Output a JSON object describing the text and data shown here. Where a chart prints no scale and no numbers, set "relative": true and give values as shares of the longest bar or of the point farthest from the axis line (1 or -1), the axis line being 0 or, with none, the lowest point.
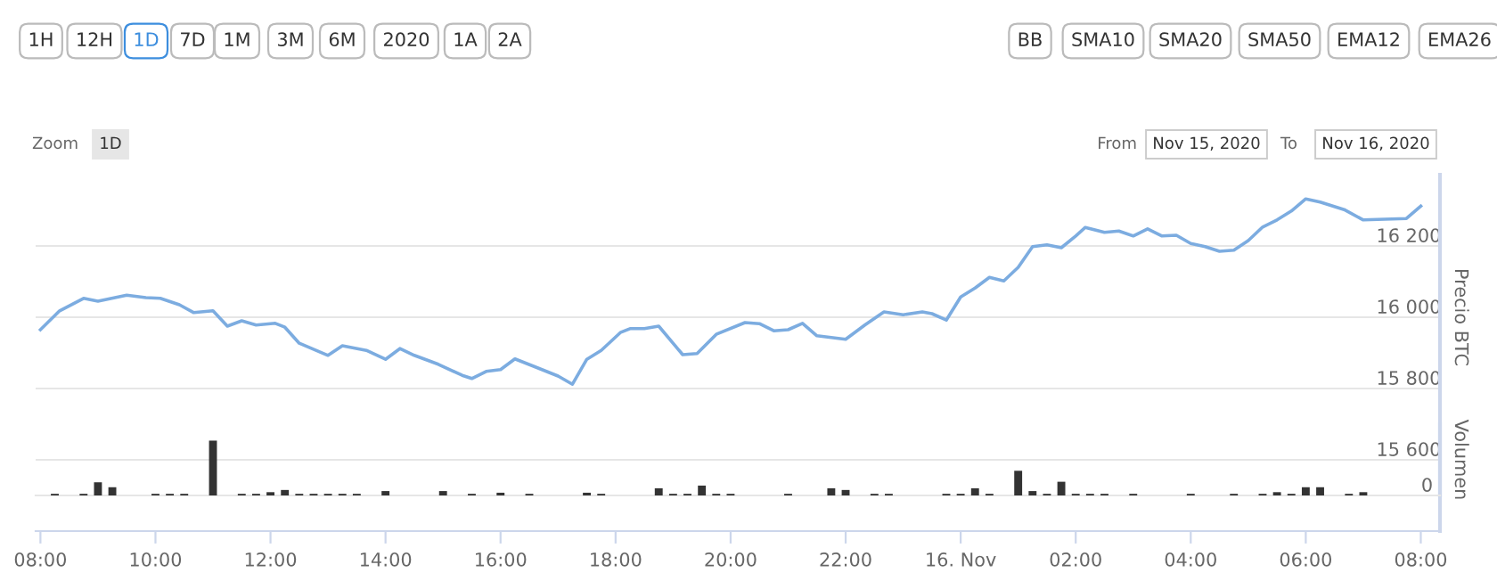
{
  "chart_data": [
    {
      "type": "line",
      "ylabel": "Precio BTC",
      "annotations": [
        "1H",
        "12H",
        "1D",
        "7D",
        "1M",
        "3M",
        "6M",
        "2020",
        "1A",
        "2A",
        "BB",
        "SMA10",
        "SMA20",
        "SMA50",
        "EMA12",
        "EMA26",
        "Zoom",
        "1D",
        "From",
        "Nov 15, 2020",
        "To",
        "Nov 16, 2020"
      ],
      "xlim": [
        "2020-11-15T07:55",
        "2020-11-16T08:20"
      ],
      "xticks": [
        {
          "value": "2020-11-15T08:00",
          "label": "08:00"
        },
        {
          "value": "2020-11-15T10:00",
          "label": "10:00"
        },
        {
          "value": "2020-11-15T12:00",
          "label": "12:00"
        },
        {
          "value": "2020-11-15T14:00",
          "label": "14:00"
        },
        {
          "value": "2020-11-15T16:00",
          "label": "16:00"
        },
        {
          "value": "2020-11-15T18:00",
          "label": "18:00"
        },
        {
          "value": "2020-11-15T20:00",
          "label": "20:00"
        },
        {
          "value": "2020-11-15T22:00",
          "label": "22:00"
        },
        {
          "value": "2020-11-16T00:00",
          "label": "16. Nov"
        },
        {
          "value": "2020-11-16T02:00",
          "label": "02:00"
        },
        {
          "value": "2020-11-16T04:00",
          "label": "04:00"
        },
        {
          "value": "2020-11-16T06:00",
          "label": "06:00"
        },
        {
          "value": "2020-11-16T08:00",
          "label": "08:00"
        }
      ],
      "ylim": [
        15400,
        16400
      ],
      "yticks": [
        {
          "value": 15600,
          "label": "15 600"
        },
        {
          "value": 15800,
          "label": "15 800"
        },
        {
          "value": 16000,
          "label": "16 000"
        },
        {
          "value": 16200,
          "label": "16 200"
        }
      ],
      "grid": "y",
      "line_style": "solid",
      "series": [
        {
          "color": "#7cace0",
          "x": [
            "2020-11-15T08:00",
            "2020-11-15T08:20",
            "2020-11-15T08:45",
            "2020-11-15T09:00",
            "2020-11-15T09:30",
            "2020-11-15T09:50",
            "2020-11-15T10:05",
            "2020-11-15T10:25",
            "2020-11-15T10:40",
            "2020-11-15T11:00",
            "2020-11-15T11:15",
            "2020-11-15T11:30",
            "2020-11-15T11:45",
            "2020-11-15T12:05",
            "2020-11-15T12:15",
            "2020-11-15T12:30",
            "2020-11-15T13:00",
            "2020-11-15T13:15",
            "2020-11-15T13:40",
            "2020-11-15T14:00",
            "2020-11-15T14:15",
            "2020-11-15T14:30",
            "2020-11-15T14:55",
            "2020-11-15T15:20",
            "2020-11-15T15:30",
            "2020-11-15T15:45",
            "2020-11-15T16:00",
            "2020-11-15T16:15",
            "2020-11-15T16:35",
            "2020-11-15T17:00",
            "2020-11-15T17:15",
            "2020-11-15T17:30",
            "2020-11-15T17:45",
            "2020-11-15T18:05",
            "2020-11-15T18:15",
            "2020-11-15T18:30",
            "2020-11-15T18:45",
            "2020-11-15T19:10",
            "2020-11-15T19:25",
            "2020-11-15T19:45",
            "2020-11-15T20:15",
            "2020-11-15T20:30",
            "2020-11-15T20:45",
            "2020-11-15T21:00",
            "2020-11-15T21:15",
            "2020-11-15T21:30",
            "2020-11-15T22:00",
            "2020-11-15T22:20",
            "2020-11-15T22:40",
            "2020-11-15T23:00",
            "2020-11-15T23:20",
            "2020-11-15T23:30",
            "2020-11-15T23:45",
            "2020-11-16T00:00",
            "2020-11-16T00:15",
            "2020-11-16T00:30",
            "2020-11-16T00:45",
            "2020-11-16T01:00",
            "2020-11-16T01:15",
            "2020-11-16T01:30",
            "2020-11-16T01:45",
            "2020-11-16T02:00",
            "2020-11-16T02:10",
            "2020-11-16T02:30",
            "2020-11-16T02:45",
            "2020-11-16T03:00",
            "2020-11-16T03:15",
            "2020-11-16T03:30",
            "2020-11-16T03:45",
            "2020-11-16T04:00",
            "2020-11-16T04:15",
            "2020-11-16T04:30",
            "2020-11-16T04:45",
            "2020-11-16T05:00",
            "2020-11-16T05:15",
            "2020-11-16T05:30",
            "2020-11-16T05:45",
            "2020-11-16T06:00",
            "2020-11-16T06:15",
            "2020-11-16T06:40",
            "2020-11-16T07:00",
            "2020-11-16T07:45",
            "2020-11-16T08:00"
          ],
          "values": [
            15965,
            16018,
            16053,
            16045,
            16062,
            16055,
            16053,
            16035,
            16013,
            16018,
            15975,
            15990,
            15978,
            15983,
            15972,
            15927,
            15893,
            15920,
            15907,
            15882,
            15912,
            15893,
            15868,
            15837,
            15828,
            15848,
            15853,
            15883,
            15862,
            15835,
            15812,
            15882,
            15907,
            15957,
            15968,
            15968,
            15975,
            15895,
            15898,
            15952,
            15985,
            15982,
            15962,
            15965,
            15983,
            15948,
            15938,
            15978,
            16015,
            16007,
            16015,
            16010,
            15992,
            16057,
            16082,
            16112,
            16102,
            16140,
            16198,
            16203,
            16195,
            16228,
            16252,
            16238,
            16242,
            16228,
            16248,
            16228,
            16230,
            16207,
            16198,
            16185,
            16188,
            16215,
            16253,
            16273,
            16298,
            16332,
            16323,
            16302,
            16273,
            16277,
            16312
          ]
        }
      ]
    },
    {
      "type": "bar",
      "ylabel": "Volumen",
      "relative": true,
      "tick_labels": false,
      "annotations": [
        "0"
      ],
      "xlim": [
        "2020-11-15T07:55",
        "2020-11-16T08:20"
      ],
      "series": [
        {
          "color": "#333333",
          "x": [
            "2020-11-15T08:15",
            "2020-11-15T08:45",
            "2020-11-15T09:00",
            "2020-11-15T09:15",
            "2020-11-15T10:00",
            "2020-11-15T10:15",
            "2020-11-15T10:30",
            "2020-11-15T11:00",
            "2020-11-15T11:30",
            "2020-11-15T11:45",
            "2020-11-15T12:00",
            "2020-11-15T12:15",
            "2020-11-15T12:30",
            "2020-11-15T12:45",
            "2020-11-15T13:00",
            "2020-11-15T13:15",
            "2020-11-15T13:30",
            "2020-11-15T14:00",
            "2020-11-15T15:00",
            "2020-11-15T15:30",
            "2020-11-15T16:00",
            "2020-11-15T16:30",
            "2020-11-15T17:30",
            "2020-11-15T17:45",
            "2020-11-15T18:45",
            "2020-11-15T19:00",
            "2020-11-15T19:15",
            "2020-11-15T19:30",
            "2020-11-15T19:45",
            "2020-11-15T20:00",
            "2020-11-15T21:00",
            "2020-11-15T21:45",
            "2020-11-15T22:00",
            "2020-11-15T22:30",
            "2020-11-15T22:45",
            "2020-11-15T23:45",
            "2020-11-16T00:00",
            "2020-11-16T00:15",
            "2020-11-16T00:30",
            "2020-11-16T01:00",
            "2020-11-16T01:15",
            "2020-11-16T01:30",
            "2020-11-16T01:45",
            "2020-11-16T02:00",
            "2020-11-16T02:15",
            "2020-11-16T02:30",
            "2020-11-16T03:00",
            "2020-11-16T04:00",
            "2020-11-16T04:45",
            "2020-11-16T05:15",
            "2020-11-16T05:30",
            "2020-11-16T05:45",
            "2020-11-16T06:00",
            "2020-11-16T06:15",
            "2020-11-16T06:45",
            "2020-11-16T07:00"
          ],
          "values": [
            0.03,
            0.03,
            0.24,
            0.15,
            0.03,
            0.03,
            0.03,
            1,
            0.03,
            0.03,
            0.06,
            0.1,
            0.03,
            0.03,
            0.03,
            0.03,
            0.03,
            0.08,
            0.08,
            0.03,
            0.05,
            0.03,
            0.05,
            0.03,
            0.13,
            0.03,
            0.03,
            0.18,
            0.03,
            0.03,
            0.03,
            0.13,
            0.1,
            0.03,
            0.03,
            0.03,
            0.03,
            0.13,
            0.03,
            0.45,
            0.08,
            0.03,
            0.25,
            0.03,
            0.03,
            0.03,
            0.03,
            0.03,
            0.03,
            0.03,
            0.06,
            0.03,
            0.15,
            0.15,
            0.03,
            0.06
          ]
        }
      ]
    }
  ]
}
